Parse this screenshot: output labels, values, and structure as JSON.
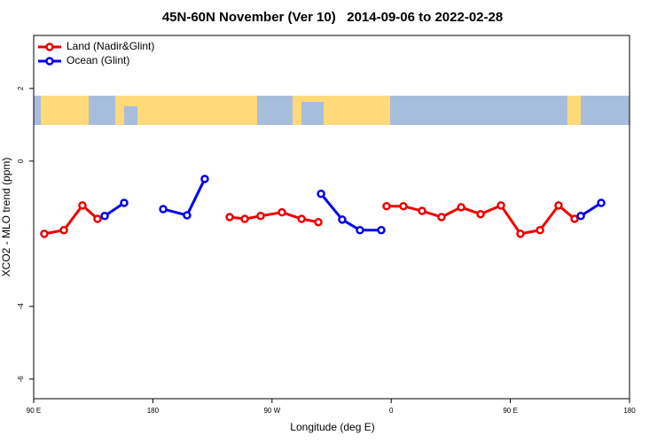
{
  "chart_data": {
    "type": "line",
    "title": "45N-60N November (Ver 10)   2014-09-06 to 2022-02-28",
    "xlabel": "Longitude (deg E)",
    "ylabel": "XCO2 - MLO trend (ppm)",
    "xlim": [
      90,
      540
    ],
    "ylim": [
      -6.54,
      3.46
    ],
    "xticks": [
      {
        "value": 90,
        "label": "90 E"
      },
      180,
      {
        "value": 270,
        "label": "90 W"
      },
      {
        "value": 360,
        "label": "0"
      },
      {
        "value": 450,
        "label": "90 E"
      },
      {
        "value": 540,
        "label": "180"
      }
    ],
    "yticks": [
      -6,
      -4,
      0,
      2
    ],
    "legend": "top-left",
    "series": [
      {
        "name": "Land (Nadir&Glint)",
        "color": "#ee0000",
        "x": [
          98.0,
          112.8,
          126.8,
          138.2,
          null,
          238.0,
          249.4,
          261.4,
          277.5,
          292.3,
          305.0,
          null,
          356.5,
          369.2,
          383.3,
          398.0,
          412.8,
          427.5,
          442.9,
          457.6,
          472.4,
          486.4,
          498.5
        ],
        "values": [
          -2.0,
          -1.9,
          -1.22,
          -1.59,
          null,
          -1.54,
          -1.59,
          -1.51,
          -1.41,
          -1.59,
          -1.68,
          null,
          -1.24,
          -1.24,
          -1.37,
          -1.54,
          -1.27,
          -1.46,
          -1.22,
          -2.0,
          -1.9,
          -1.22,
          -1.59
        ]
      },
      {
        "name": "Ocean (Glint)",
        "color": "#0000ee",
        "x": [
          143.6,
          158.3,
          null,
          187.8,
          205.8,
          219.2,
          null,
          307.0,
          323.0,
          336.4,
          352.5,
          null,
          503.2,
          518.6
        ],
        "values": [
          -1.51,
          -1.15,
          null,
          -1.32,
          -1.49,
          -0.49,
          null,
          -0.9,
          -1.61,
          -1.9,
          -1.9,
          null,
          -1.51,
          -1.15
        ]
      }
    ]
  }
}
